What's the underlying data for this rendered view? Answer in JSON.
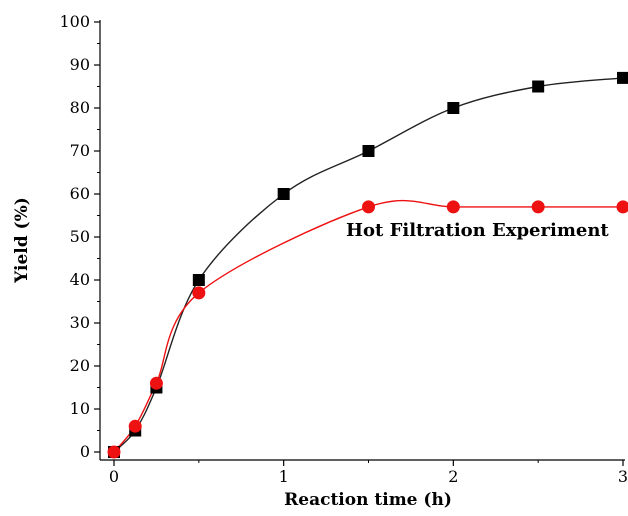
{
  "chart_data": {
    "type": "line",
    "title": "",
    "xlabel": "Reaction time (h)",
    "ylabel": "Yield (%)",
    "xlim": [
      0,
      3
    ],
    "ylim": [
      0,
      100
    ],
    "x_ticks": [
      "0",
      "1",
      "2",
      "3"
    ],
    "y_ticks": [
      "0",
      "10",
      "20",
      "30",
      "40",
      "50",
      "60",
      "70",
      "80",
      "90",
      "100"
    ],
    "grid": false,
    "legend": "none",
    "annotations": [
      {
        "text": "Hot Filtration Experiment"
      }
    ],
    "series": [
      {
        "color": "#000000",
        "line_color": "#222222",
        "marker": "square",
        "points": [
          [
            0,
            0
          ],
          [
            0.125,
            5
          ],
          [
            0.25,
            15
          ],
          [
            0.5,
            40
          ],
          [
            1,
            60
          ],
          [
            1.5,
            70
          ],
          [
            2,
            80
          ],
          [
            2.5,
            85
          ],
          [
            3,
            87
          ]
        ]
      },
      {
        "color": "#ee1111",
        "line_color": "#ee1111",
        "marker": "circle",
        "points": [
          [
            0,
            0
          ],
          [
            0.125,
            6
          ],
          [
            0.25,
            16
          ],
          [
            0.5,
            37
          ],
          [
            1.5,
            57
          ],
          [
            2,
            57
          ],
          [
            2.5,
            57
          ],
          [
            3,
            57
          ]
        ]
      }
    ]
  }
}
